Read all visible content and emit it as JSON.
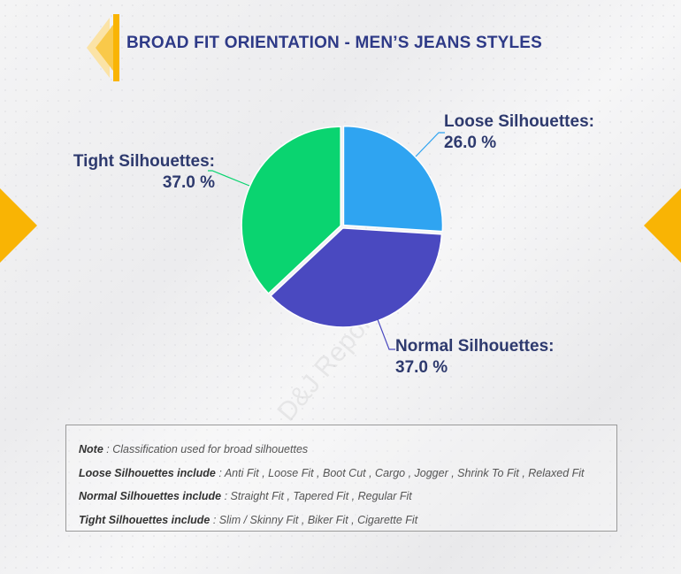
{
  "title": "BROAD FIT ORIENTATION - MEN’S JEANS STYLES",
  "watermark": "D&J Reports",
  "colors": {
    "title": "#2e3a87",
    "accent": "#f9b404",
    "loose": "#2fa4f1",
    "normal": "#4a49c0",
    "tight": "#0ad470"
  },
  "chart_data": {
    "type": "pie",
    "slices": [
      {
        "label": "Loose Silhouettes:",
        "value": 26.0,
        "value_label": "26.0 %",
        "color": "#2fa4f1"
      },
      {
        "label": "Normal Silhouettes:",
        "value": 37.0,
        "value_label": "37.0 %",
        "color": "#4a49c0"
      },
      {
        "label": "Tight Silhouettes:",
        "value": 37.0,
        "value_label": "37.0 %",
        "color": "#0ad470"
      }
    ],
    "start_angle_deg": 0,
    "direction": "clockwise"
  },
  "note": {
    "line1_key": "Note",
    "line1_rest": " : Classification used for broad silhouettes",
    "line2_key": "Loose Silhouettes include",
    "line2_rest": " : Anti Fit , Loose Fit , Boot Cut , Cargo , Jogger , Shrink To Fit , Relaxed Fit",
    "line3_key": "Normal Silhouettes include",
    "line3_rest": " : Straight Fit , Tapered Fit , Regular Fit",
    "line4_key": "Tight Silhouettes include",
    "line4_rest": " : Slim / Skinny Fit , Biker Fit , Cigarette Fit"
  }
}
